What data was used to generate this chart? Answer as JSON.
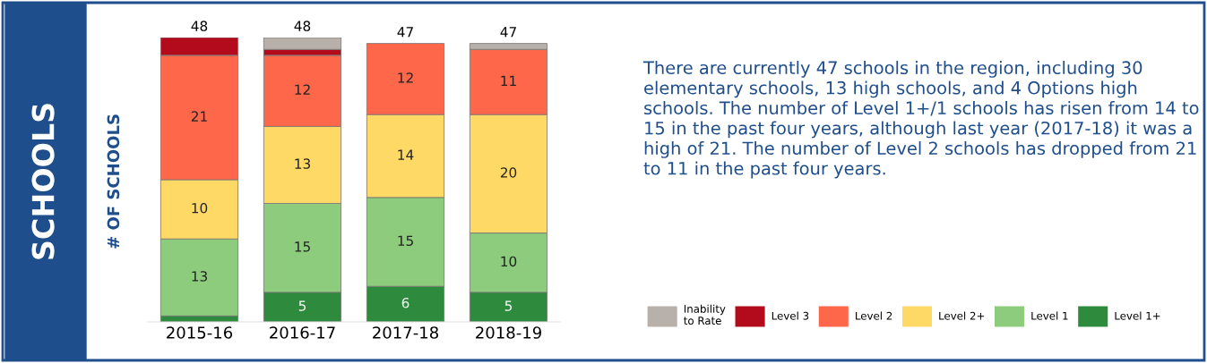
{
  "chart_data": {
    "type": "bar",
    "title": "SCHOOLS",
    "ylabel": "# OF SCHOOLS",
    "categories": [
      "2015-16",
      "2016-17",
      "2017-18",
      "2018-19"
    ],
    "stacked": true,
    "ylim": [
      0,
      48
    ],
    "tick_labels": "x",
    "grid": false,
    "legend": "bottom right",
    "series": [
      {
        "name": "Level 1+",
        "color": "#2e8b3e",
        "values": [
          1,
          5,
          6,
          5
        ],
        "value_labels": [
          null,
          "5",
          "6",
          "5"
        ]
      },
      {
        "name": "Level 1",
        "color": "#8ccc7c",
        "values": [
          13,
          15,
          15,
          10
        ],
        "value_labels": [
          "13",
          "15",
          "15",
          "10"
        ]
      },
      {
        "name": "Level 2+",
        "color": "#ffd966",
        "values": [
          10,
          13,
          14,
          20
        ],
        "value_labels": [
          "10",
          "13",
          "14",
          "20"
        ]
      },
      {
        "name": "Level 2",
        "color": "#ff674b",
        "values": [
          21,
          12,
          12,
          11
        ],
        "value_labels": [
          "21",
          "12",
          "12",
          "11"
        ]
      },
      {
        "name": "Level 3",
        "color": "#b30b1c",
        "values": [
          3,
          1,
          0,
          0
        ],
        "value_labels": [
          null,
          null,
          null,
          null
        ]
      },
      {
        "name": "Inability\nto Rate",
        "color": "#b8b0aa",
        "values": [
          0,
          2,
          0,
          1
        ],
        "value_labels": [
          null,
          null,
          null,
          null
        ]
      }
    ],
    "totals": [
      "48",
      "48",
      "47",
      "47"
    ],
    "annotations": [
      "There are currently 47 schools in the region, including 30 elementary schools, 13 high schools, and 4 Options high schools. The number of Level 1+/1 schools has risen from 14 to 15 in the past four years, although last year (2017-18) it was a high of 21. The number of Level 2 schools has dropped from 21 to 11 in the past four years."
    ]
  }
}
